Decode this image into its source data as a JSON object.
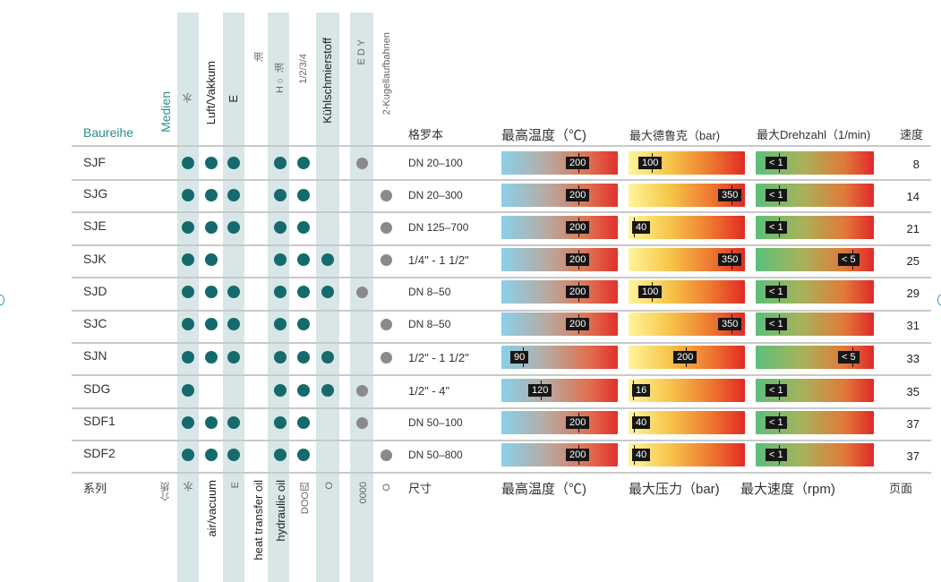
{
  "header": {
    "baureihe": "Baureihe",
    "medien": "Medien",
    "col_water": "水",
    "col_air": "Luft/Vakkum",
    "col_e": "E",
    "col_oil_heat": "油",
    "col_hydraulic": "H○ 油",
    "col_col6": "1/2/3/4",
    "col_coolant": "Kühlschmierstoff",
    "col_eb": "E D Y",
    "col_ball": "2-Kugellaufbahnen",
    "size": "格罗本",
    "temp": "最高温度（℃)",
    "press": "最大德鲁克（bar)",
    "speed": "最大Drehzahl（1/min)",
    "page": "速度"
  },
  "footer": {
    "series": "系列",
    "media": "介质",
    "water": "水",
    "air": "air/vacuum",
    "e": "E",
    "heat_oil": "heat transfer oil",
    "hydraulic": "hydraulic oil",
    "col6": "DOO四",
    "coolant": "O",
    "col8": "0000",
    "col9": "O",
    "size": "尺寸",
    "temp": "最高温度（℃)",
    "press": "最大压力（bar)",
    "speed": "最大速度（rpm)",
    "page": "页面"
  },
  "rows": [
    {
      "name": "SJF",
      "size": "DN 20–100",
      "temp": "200",
      "press": "100",
      "speed": "< 1",
      "page": "8"
    },
    {
      "name": "SJG",
      "size": "DN 20–300",
      "temp": "200",
      "press": "350",
      "speed": "< 1",
      "page": "14"
    },
    {
      "name": "SJE",
      "size": "DN 125–700",
      "temp": "200",
      "press": "40",
      "speed": "< 1",
      "page": "21"
    },
    {
      "name": "SJK",
      "size": "1/4\" - 1 1/2\"",
      "temp": "200",
      "press": "350",
      "speed": "< 5",
      "page": "25"
    },
    {
      "name": "SJD",
      "size": "DN 8–50",
      "temp": "200",
      "press": "100",
      "speed": "< 1",
      "page": "29"
    },
    {
      "name": "SJC",
      "size": "DN 8–50",
      "temp": "200",
      "press": "350",
      "speed": "< 1",
      "page": "31"
    },
    {
      "name": "SJN",
      "size": "1/2\" - 1 1/2\"",
      "temp": "90",
      "press": "200",
      "speed": "< 5",
      "page": "33"
    },
    {
      "name": "SDG",
      "size": "1/2\" - 4\"",
      "temp": "120",
      "press": "16",
      "speed": "< 1",
      "page": "35"
    },
    {
      "name": "SDF1",
      "size": "DN 50–100",
      "temp": "200",
      "press": "40",
      "speed": "< 1",
      "page": "37"
    },
    {
      "name": "SDF2",
      "size": "DN 50–800",
      "temp": "200",
      "press": "40",
      "speed": "< 1",
      "page": "37"
    }
  ]
}
